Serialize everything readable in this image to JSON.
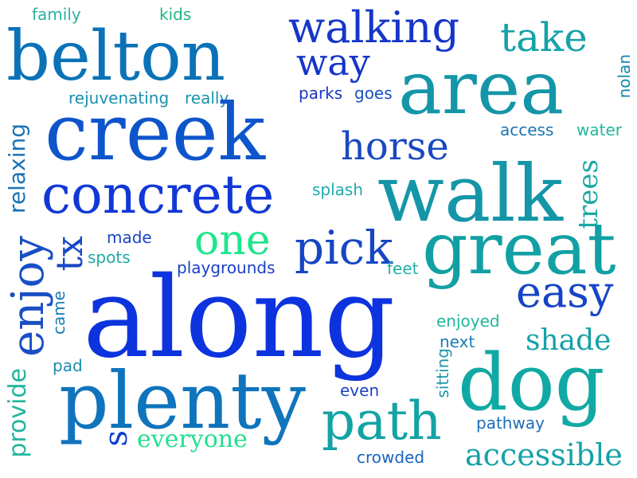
{
  "words": [
    {
      "text": "family",
      "color": "#2bb3a0"
    },
    {
      "text": "kids",
      "color": "#22b58a"
    },
    {
      "text": "belton",
      "color": "#0b72b7"
    },
    {
      "text": "walking",
      "color": "#1536c8"
    },
    {
      "text": "way",
      "color": "#1535c9"
    },
    {
      "text": "take",
      "color": "#16a2a8"
    },
    {
      "text": "area",
      "color": "#1496a8"
    },
    {
      "text": "nolan",
      "color": "#118aa8"
    },
    {
      "text": "rejuvenating",
      "color": "#1a8fae"
    },
    {
      "text": "really",
      "color": "#1b93ab"
    },
    {
      "text": "parks",
      "color": "#1a35c2"
    },
    {
      "text": "goes",
      "color": "#1a4fbf"
    },
    {
      "text": "creek",
      "color": "#0e55cc"
    },
    {
      "text": "horse",
      "color": "#1a48c2"
    },
    {
      "text": "access",
      "color": "#1d73b4"
    },
    {
      "text": "water",
      "color": "#23b69a"
    },
    {
      "text": "relaxing",
      "color": "#1a73b4"
    },
    {
      "text": "concrete",
      "color": "#1138d6"
    },
    {
      "text": "splash",
      "color": "#22a9a8"
    },
    {
      "text": "walk",
      "color": "#1496a8"
    },
    {
      "text": "trees",
      "color": "#18a8a2"
    },
    {
      "text": "one",
      "color": "#1fe68c"
    },
    {
      "text": "pick",
      "color": "#1646c5"
    },
    {
      "text": "great",
      "color": "#12a0a4"
    },
    {
      "text": "enjoy",
      "color": "#1a4ec4"
    },
    {
      "text": "tx",
      "color": "#1846c6"
    },
    {
      "text": "made",
      "color": "#1a45c4"
    },
    {
      "text": "spots",
      "color": "#21a9a4"
    },
    {
      "text": "playgrounds",
      "color": "#1a3fc6"
    },
    {
      "text": "feet",
      "color": "#22b0a6"
    },
    {
      "text": "came",
      "color": "#1b7bb4"
    },
    {
      "text": "along",
      "color": "#0d33de"
    },
    {
      "text": "easy",
      "color": "#1544c7"
    },
    {
      "text": "enjoyed",
      "color": "#21b79c"
    },
    {
      "text": "shade",
      "color": "#15a1a8"
    },
    {
      "text": "next",
      "color": "#1a7cb6"
    },
    {
      "text": "pad",
      "color": "#1a8cae"
    },
    {
      "text": "sitting",
      "color": "#1e95ab"
    },
    {
      "text": "dog",
      "color": "#11a9a3"
    },
    {
      "text": "provide",
      "color": "#22b59c"
    },
    {
      "text": "plenty",
      "color": "#0f74bc"
    },
    {
      "text": "even",
      "color": "#1a45c4"
    },
    {
      "text": "path",
      "color": "#14a3a5"
    },
    {
      "text": "s",
      "color": "#0d3fd0"
    },
    {
      "text": "everyone",
      "color": "#22e08e"
    },
    {
      "text": "pathway",
      "color": "#1c6ebb"
    },
    {
      "text": "crowded",
      "color": "#1a64bd"
    },
    {
      "text": "accessible",
      "color": "#14a2a6"
    }
  ]
}
